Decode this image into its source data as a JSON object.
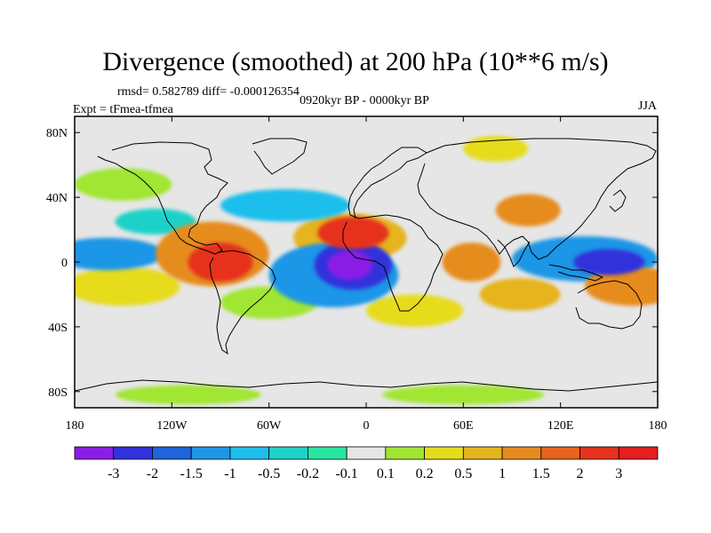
{
  "title": "Divergence (smoothed) at 200 hPa (10**6 m/s)",
  "stats_line": "rmsd= 0.582789 diff= -0.000126354",
  "experiment": "Expt = tFmea-tfmea",
  "period": "0920kyr BP - 0000kyr BP",
  "season": "JJA",
  "axes": {
    "lat_ticks": [
      "80N",
      "40N",
      "0",
      "40S",
      "80S"
    ],
    "lat_values": [
      80,
      40,
      0,
      -40,
      -80
    ],
    "lon_ticks": [
      "180",
      "120W",
      "60W",
      "0",
      "60E",
      "120E",
      "180"
    ],
    "lon_values": [
      -180,
      -120,
      -60,
      0,
      60,
      120,
      180
    ],
    "lat_range": [
      -90,
      90
    ],
    "lon_range": [
      -180,
      180
    ]
  },
  "colorbar": {
    "labels": [
      "-3",
      "-2",
      "-1.5",
      "-1",
      "-0.5",
      "-0.2",
      "-0.1",
      "0.1",
      "0.2",
      "0.5",
      "1",
      "1.5",
      "2",
      "3"
    ],
    "colors": [
      "#8a1ee6",
      "#3232dc",
      "#1e64dc",
      "#1e96e6",
      "#1ebeeb",
      "#1ed2c8",
      "#28e6a0",
      "#e6e6e6",
      "#a0e632",
      "#e6dc1e",
      "#e6b41e",
      "#e68c1e",
      "#e6641e",
      "#e6321e",
      "#e61e1e"
    ]
  },
  "field_blobs": [
    {
      "lon": -10,
      "lat": -2,
      "rx": 14,
      "ry": 9,
      "level": 0
    },
    {
      "lon": -8,
      "lat": -2,
      "rx": 24,
      "ry": 15,
      "level": 1
    },
    {
      "lon": -20,
      "lat": -8,
      "rx": 40,
      "ry": 20,
      "level": 3
    },
    {
      "lon": 150,
      "lat": 0,
      "rx": 22,
      "ry": 8,
      "level": 1
    },
    {
      "lon": 135,
      "lat": 2,
      "rx": 45,
      "ry": 14,
      "level": 3
    },
    {
      "lon": -160,
      "lat": 5,
      "rx": 35,
      "ry": 10,
      "level": 3
    },
    {
      "lon": -90,
      "lat": 0,
      "rx": 20,
      "ry": 12,
      "level": 13
    },
    {
      "lon": -95,
      "lat": 5,
      "rx": 35,
      "ry": 20,
      "level": 11
    },
    {
      "lon": -8,
      "lat": 18,
      "rx": 22,
      "ry": 10,
      "level": 13
    },
    {
      "lon": -10,
      "lat": 15,
      "rx": 35,
      "ry": 15,
      "level": 10
    },
    {
      "lon": 165,
      "lat": -15,
      "rx": 30,
      "ry": 12,
      "level": 11
    },
    {
      "lon": 95,
      "lat": -20,
      "rx": 25,
      "ry": 10,
      "level": 10
    },
    {
      "lon": 65,
      "lat": 0,
      "rx": 18,
      "ry": 12,
      "level": 11
    },
    {
      "lon": -150,
      "lat": -15,
      "rx": 35,
      "ry": 12,
      "level": 9
    },
    {
      "lon": -50,
      "lat": 35,
      "rx": 40,
      "ry": 10,
      "level": 4
    },
    {
      "lon": 100,
      "lat": 32,
      "rx": 20,
      "ry": 10,
      "level": 11
    },
    {
      "lon": -150,
      "lat": 48,
      "rx": 30,
      "ry": 10,
      "level": 8
    },
    {
      "lon": -60,
      "lat": -25,
      "rx": 30,
      "ry": 10,
      "level": 8
    },
    {
      "lon": 30,
      "lat": -30,
      "rx": 30,
      "ry": 10,
      "level": 9
    },
    {
      "lon": -110,
      "lat": -82,
      "rx": 45,
      "ry": 6,
      "level": 8
    },
    {
      "lon": 60,
      "lat": -82,
      "rx": 50,
      "ry": 6,
      "level": 8
    },
    {
      "lon": 80,
      "lat": 70,
      "rx": 20,
      "ry": 8,
      "level": 9
    },
    {
      "lon": -130,
      "lat": 25,
      "rx": 25,
      "ry": 8,
      "level": 5
    }
  ]
}
